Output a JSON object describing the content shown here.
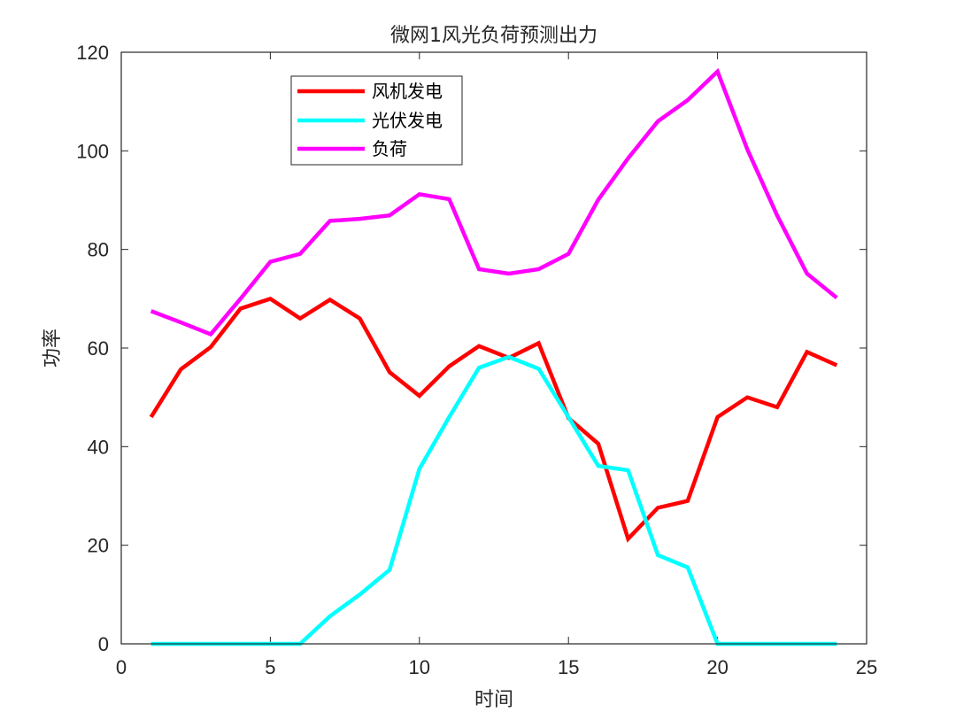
{
  "chart_data": {
    "type": "line",
    "title": "微网1风光负荷预测出力",
    "xlabel": "时间",
    "ylabel": "功率",
    "xlim": [
      0,
      25
    ],
    "ylim": [
      0,
      120
    ],
    "xticks": [
      0,
      5,
      10,
      15,
      20,
      25
    ],
    "yticks": [
      0,
      20,
      40,
      60,
      80,
      100,
      120
    ],
    "xtick_labels": [
      "0",
      "5",
      "10",
      "15",
      "20",
      "25"
    ],
    "ytick_labels": [
      "0",
      "20",
      "40",
      "60",
      "80",
      "100",
      "120"
    ],
    "grid": false,
    "legend_position": "top-left, inside axes",
    "x": [
      1,
      2,
      3,
      4,
      5,
      6,
      7,
      8,
      9,
      10,
      11,
      12,
      13,
      14,
      15,
      16,
      17,
      18,
      19,
      20,
      21,
      22,
      23,
      24
    ],
    "series": [
      {
        "name": "风机发电",
        "color": "#ff0000",
        "values": [
          46,
          55.7,
          60.2,
          68,
          70,
          66,
          69.8,
          66,
          55.1,
          50.3,
          56.3,
          60.4,
          58,
          61,
          45.8,
          40.6,
          21.3,
          27.6,
          29,
          46,
          50,
          48,
          59.2,
          56.5
        ]
      },
      {
        "name": "光伏发电",
        "color": "#00ffff",
        "values": [
          0,
          0,
          0,
          0,
          0,
          0,
          5.6,
          10,
          15,
          35.5,
          46,
          56,
          58.2,
          55.8,
          46,
          36.1,
          35.2,
          18,
          15.5,
          0,
          0,
          0,
          0,
          0
        ]
      },
      {
        "name": "负荷",
        "color": "#ff00ff",
        "values": [
          67.5,
          65.2,
          62.8,
          70,
          77.5,
          79.1,
          85.8,
          86.2,
          86.9,
          91.2,
          90.2,
          76,
          75.1,
          76,
          79.1,
          90.1,
          98.5,
          106,
          110.3,
          116.1,
          100.3,
          86.9,
          75.1,
          70.2
        ]
      }
    ]
  }
}
